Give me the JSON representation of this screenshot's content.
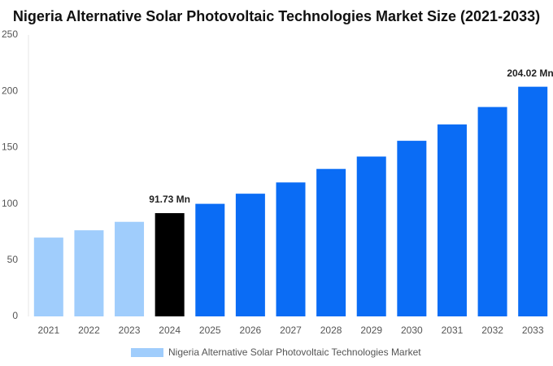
{
  "chart_data": {
    "type": "bar",
    "title": "Nigeria Alternative Solar Photovoltaic Technologies Market Size (2021-2033)",
    "categories": [
      "2021",
      "2022",
      "2023",
      "2024",
      "2025",
      "2026",
      "2027",
      "2028",
      "2029",
      "2030",
      "2031",
      "2032",
      "2033"
    ],
    "series": [
      {
        "name": "Nigeria Alternative Solar Photovoltaic Technologies Market",
        "color": "#a0cdfc",
        "colors": [
          "#a0cdfc",
          "#a0cdfc",
          "#a0cdfc",
          "#000000",
          "#0a6cf5",
          "#0a6cf5",
          "#0a6cf5",
          "#0a6cf5",
          "#0a6cf5",
          "#0a6cf5",
          "#0a6cf5",
          "#0a6cf5",
          "#0a6cf5"
        ],
        "values": [
          70,
          76.5,
          84,
          91.73,
          100,
          109,
          119,
          131,
          142,
          156,
          170.5,
          186,
          204.02
        ],
        "value_labels": [
          null,
          null,
          null,
          "91.73 Mn",
          null,
          null,
          null,
          null,
          null,
          null,
          null,
          null,
          "204.02 Mn"
        ]
      }
    ],
    "ylim": [
      0,
      250
    ],
    "yticks": [
      0,
      50,
      100,
      150,
      200,
      250
    ],
    "grid": false
  }
}
